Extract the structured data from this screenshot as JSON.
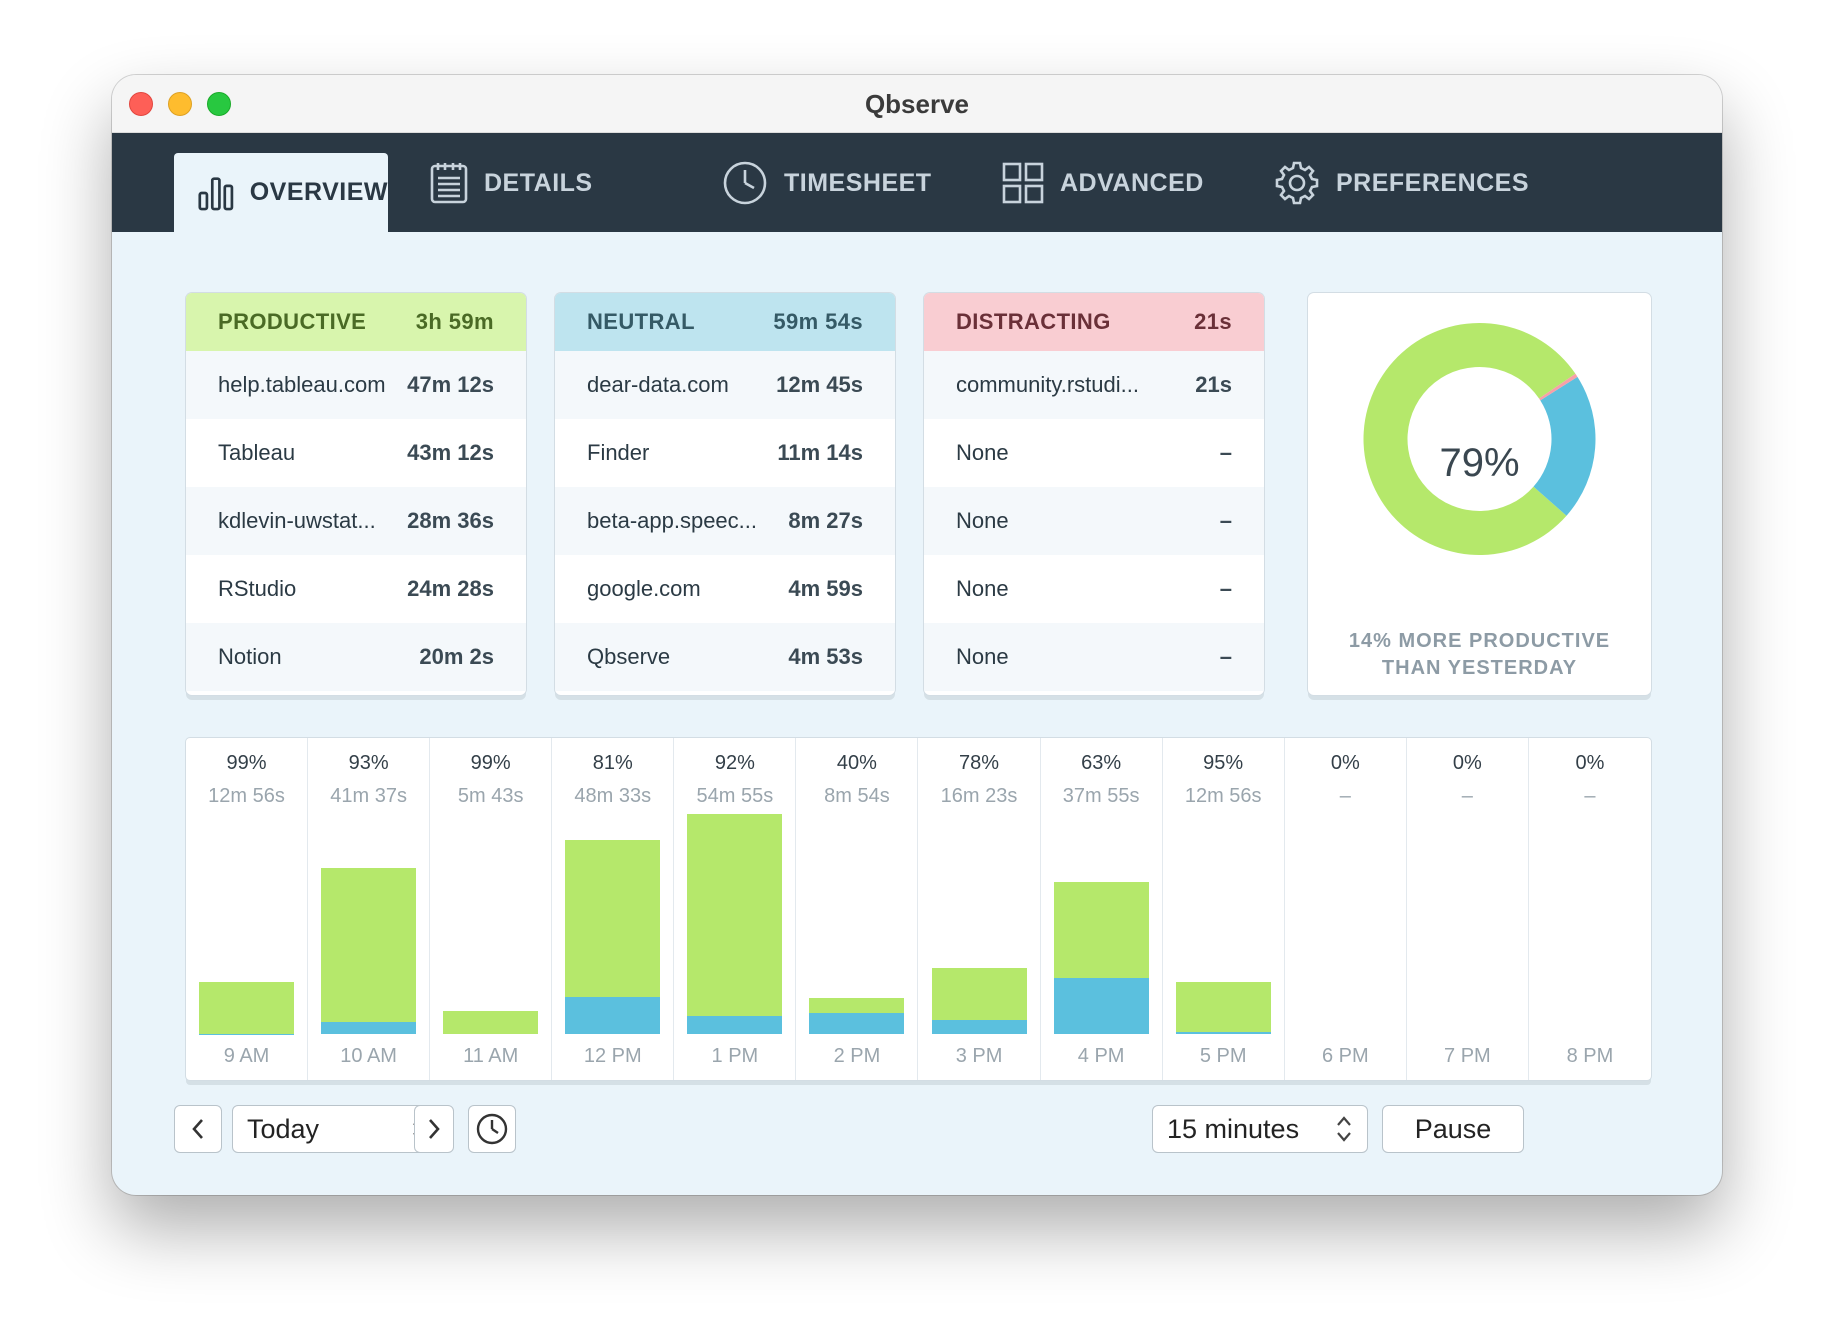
{
  "window": {
    "title": "Qbserve"
  },
  "tabs": [
    {
      "label": "OVERVIEW",
      "icon": "bar-chart-icon",
      "active": true
    },
    {
      "label": "DETAILS",
      "icon": "list-document-icon",
      "active": false
    },
    {
      "label": "TIMESHEET",
      "icon": "clock-icon",
      "active": false
    },
    {
      "label": "ADVANCED",
      "icon": "grid-icon",
      "active": false
    },
    {
      "label": "PREFERENCES",
      "icon": "gear-icon",
      "active": false
    }
  ],
  "categories": [
    {
      "name": "PRODUCTIVE",
      "total": "3h 59m",
      "head_bg": "#d8f5ad",
      "head_color": "#4a6a25",
      "items": [
        {
          "name": "help.tableau.com",
          "time": "47m 12s"
        },
        {
          "name": "Tableau",
          "time": "43m 12s"
        },
        {
          "name": "kdlevin-uwstat...",
          "time": "28m 36s"
        },
        {
          "name": "RStudio",
          "time": "24m 28s"
        },
        {
          "name": "Notion",
          "time": "20m 2s"
        }
      ]
    },
    {
      "name": "NEUTRAL",
      "total": "59m 54s",
      "head_bg": "#bee4ef",
      "head_color": "#355a66",
      "items": [
        {
          "name": "dear-data.com",
          "time": "12m 45s"
        },
        {
          "name": "Finder",
          "time": "11m 14s"
        },
        {
          "name": "beta-app.speec...",
          "time": "8m 27s"
        },
        {
          "name": "google.com",
          "time": "4m 59s"
        },
        {
          "name": "Qbserve",
          "time": "4m 53s"
        }
      ]
    },
    {
      "name": "DISTRACTING",
      "total": "21s",
      "head_bg": "#f9cdd2",
      "head_color": "#6a3038",
      "items": [
        {
          "name": "community.rstudi...",
          "time": "21s"
        },
        {
          "name": "None",
          "time": "–"
        },
        {
          "name": "None",
          "time": "–"
        },
        {
          "name": "None",
          "time": "–"
        },
        {
          "name": "None",
          "time": "–"
        }
      ]
    }
  ],
  "summary": {
    "productive_percent": "79%",
    "comparison_line1": "14% MORE PRODUCTIVE",
    "comparison_line2": "THAN YESTERDAY",
    "donut_fractions": {
      "productive": 0.79,
      "neutral": 0.205,
      "distracting": 0.005
    }
  },
  "colors": {
    "productive": "#b5e86b",
    "neutral": "#5bc0de",
    "distracting": "#f7a0a8",
    "tabbar": "#2a3844"
  },
  "chart_data": {
    "type": "bar",
    "categories": [
      "9 AM",
      "10 AM",
      "11 AM",
      "12 PM",
      "1 PM",
      "2 PM",
      "3 PM",
      "4 PM",
      "5 PM",
      "6 PM",
      "7 PM",
      "8 PM"
    ],
    "percent_labels": [
      "99%",
      "93%",
      "99%",
      "81%",
      "92%",
      "40%",
      "78%",
      "63%",
      "95%",
      "0%",
      "0%",
      "0%"
    ],
    "duration_labels": [
      "12m 56s",
      "41m 37s",
      "5m 43s",
      "48m 33s",
      "54m 55s",
      "8m 54s",
      "16m 23s",
      "37m 55s",
      "12m 56s",
      "–",
      "–",
      "–"
    ],
    "series": [
      {
        "name": "productive",
        "values": [
          12.8,
          38.7,
          5.7,
          39.3,
          50.5,
          3.6,
          12.8,
          23.9,
          12.3,
          0,
          0,
          0
        ]
      },
      {
        "name": "neutral",
        "values": [
          0.1,
          2.9,
          0,
          9.2,
          4.4,
          5.3,
          3.6,
          14.0,
          0.6,
          0,
          0,
          0
        ]
      }
    ],
    "ylim": [
      0,
      60
    ]
  },
  "controls": {
    "prev_label": "‹",
    "date_value": "Today",
    "next_label": "›",
    "interval_value": "15 minutes",
    "pause_label": "Pause"
  }
}
